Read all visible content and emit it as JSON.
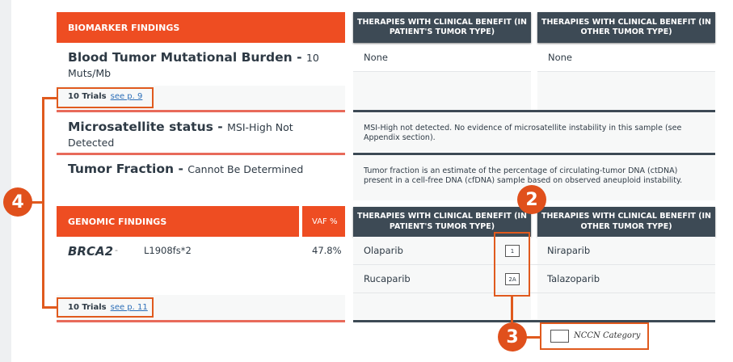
{
  "biomarker": {
    "header": "BIOMARKER FINDINGS",
    "therapy_header_patient": "THERAPIES WITH CLINICAL BENEFIT (IN PATIENT'S TUMOR TYPE)",
    "therapy_header_other": "THERAPIES WITH CLINICAL BENEFIT (IN OTHER TUMOR TYPE)",
    "rows": [
      {
        "name": "Blood Tumor Mutational Burden",
        "value": "10 Muts/Mb",
        "patient": "None",
        "other": "None",
        "trials": "10 Trials",
        "link": "see p. 9"
      },
      {
        "name": "Microsatellite status",
        "value": "MSI-High Not Detected",
        "note": "MSI-High not detected. No evidence of microsatellite instability in this sample (see  Appendix section)."
      },
      {
        "name": "Tumor Fraction",
        "value": "Cannot Be Determined",
        "note": "Tumor fraction is an estimate of the percentage of circulating-tumor DNA (ctDNA) present in a cell-free DNA (cfDNA) sample based on observed aneuploid instability."
      }
    ]
  },
  "genomic": {
    "header": "GENOMIC FINDINGS",
    "vaf_header": "VAF %",
    "therapy_header_patient": "THERAPIES WITH CLINICAL BENEFIT (IN PATIENT'S TUMOR TYPE)",
    "therapy_header_other": "THERAPIES WITH CLINICAL BENEFIT (IN OTHER TUMOR TYPE)",
    "gene": "BRCA2",
    "dash": "-",
    "alteration": "L1908fs*2",
    "vaf": "47.8%",
    "patient_therapies": [
      {
        "name": "Olaparib",
        "nccn": "1"
      },
      {
        "name": "Rucaparib",
        "nccn": "2A"
      }
    ],
    "other_therapies": [
      "Niraparib",
      "Talazoparib"
    ],
    "trials": "10 Trials",
    "link": "see p. 11"
  },
  "legend": {
    "label": "NCCN Category"
  },
  "annotations": {
    "two": "2",
    "three": "3",
    "four": "4"
  },
  "colors": {
    "orange": "#ee4d22",
    "dark": "#3d4a55",
    "annotation": "#e05a1e",
    "link": "#2d6fb8"
  }
}
